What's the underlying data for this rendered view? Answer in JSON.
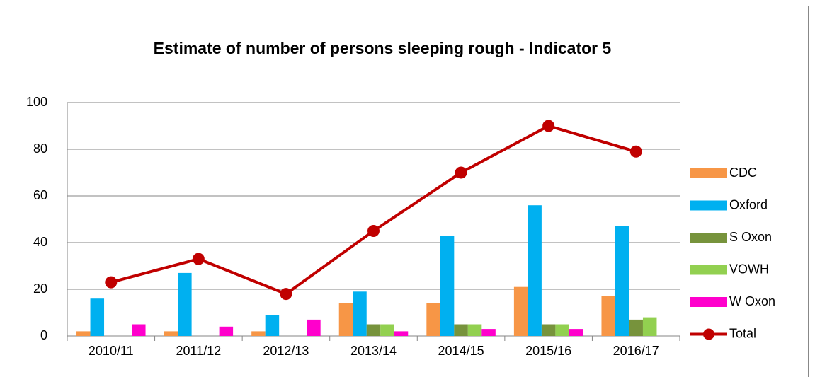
{
  "chart_data": {
    "type": "bar",
    "title": "Estimate of number of persons sleeping rough - Indicator 5",
    "categories": [
      "2010/11",
      "2011/12",
      "2012/13",
      "2013/14",
      "2014/15",
      "2015/16",
      "2016/17"
    ],
    "series": [
      {
        "name": "CDC",
        "color": "#f79646",
        "values": [
          2,
          2,
          2,
          14,
          14,
          21,
          17
        ]
      },
      {
        "name": "Oxford",
        "color": "#00b0f0",
        "values": [
          16,
          27,
          9,
          19,
          43,
          56,
          47
        ]
      },
      {
        "name": "S Oxon",
        "color": "#77933c",
        "values": [
          0,
          0,
          0,
          5,
          5,
          5,
          7
        ]
      },
      {
        "name": "VOWH",
        "color": "#92d050",
        "values": [
          0,
          0,
          0,
          5,
          5,
          5,
          8
        ]
      },
      {
        "name": "W Oxon",
        "color": "#ff00cc",
        "values": [
          5,
          4,
          7,
          2,
          3,
          3,
          0
        ]
      },
      {
        "name": "Total",
        "color": "#c00000",
        "type": "line",
        "values": [
          23,
          33,
          18,
          45,
          70,
          90,
          79
        ]
      }
    ],
    "ylim": [
      0,
      100
    ],
    "yticks": [
      0,
      20,
      40,
      60,
      80,
      100
    ],
    "grid": true,
    "legend": "right"
  }
}
